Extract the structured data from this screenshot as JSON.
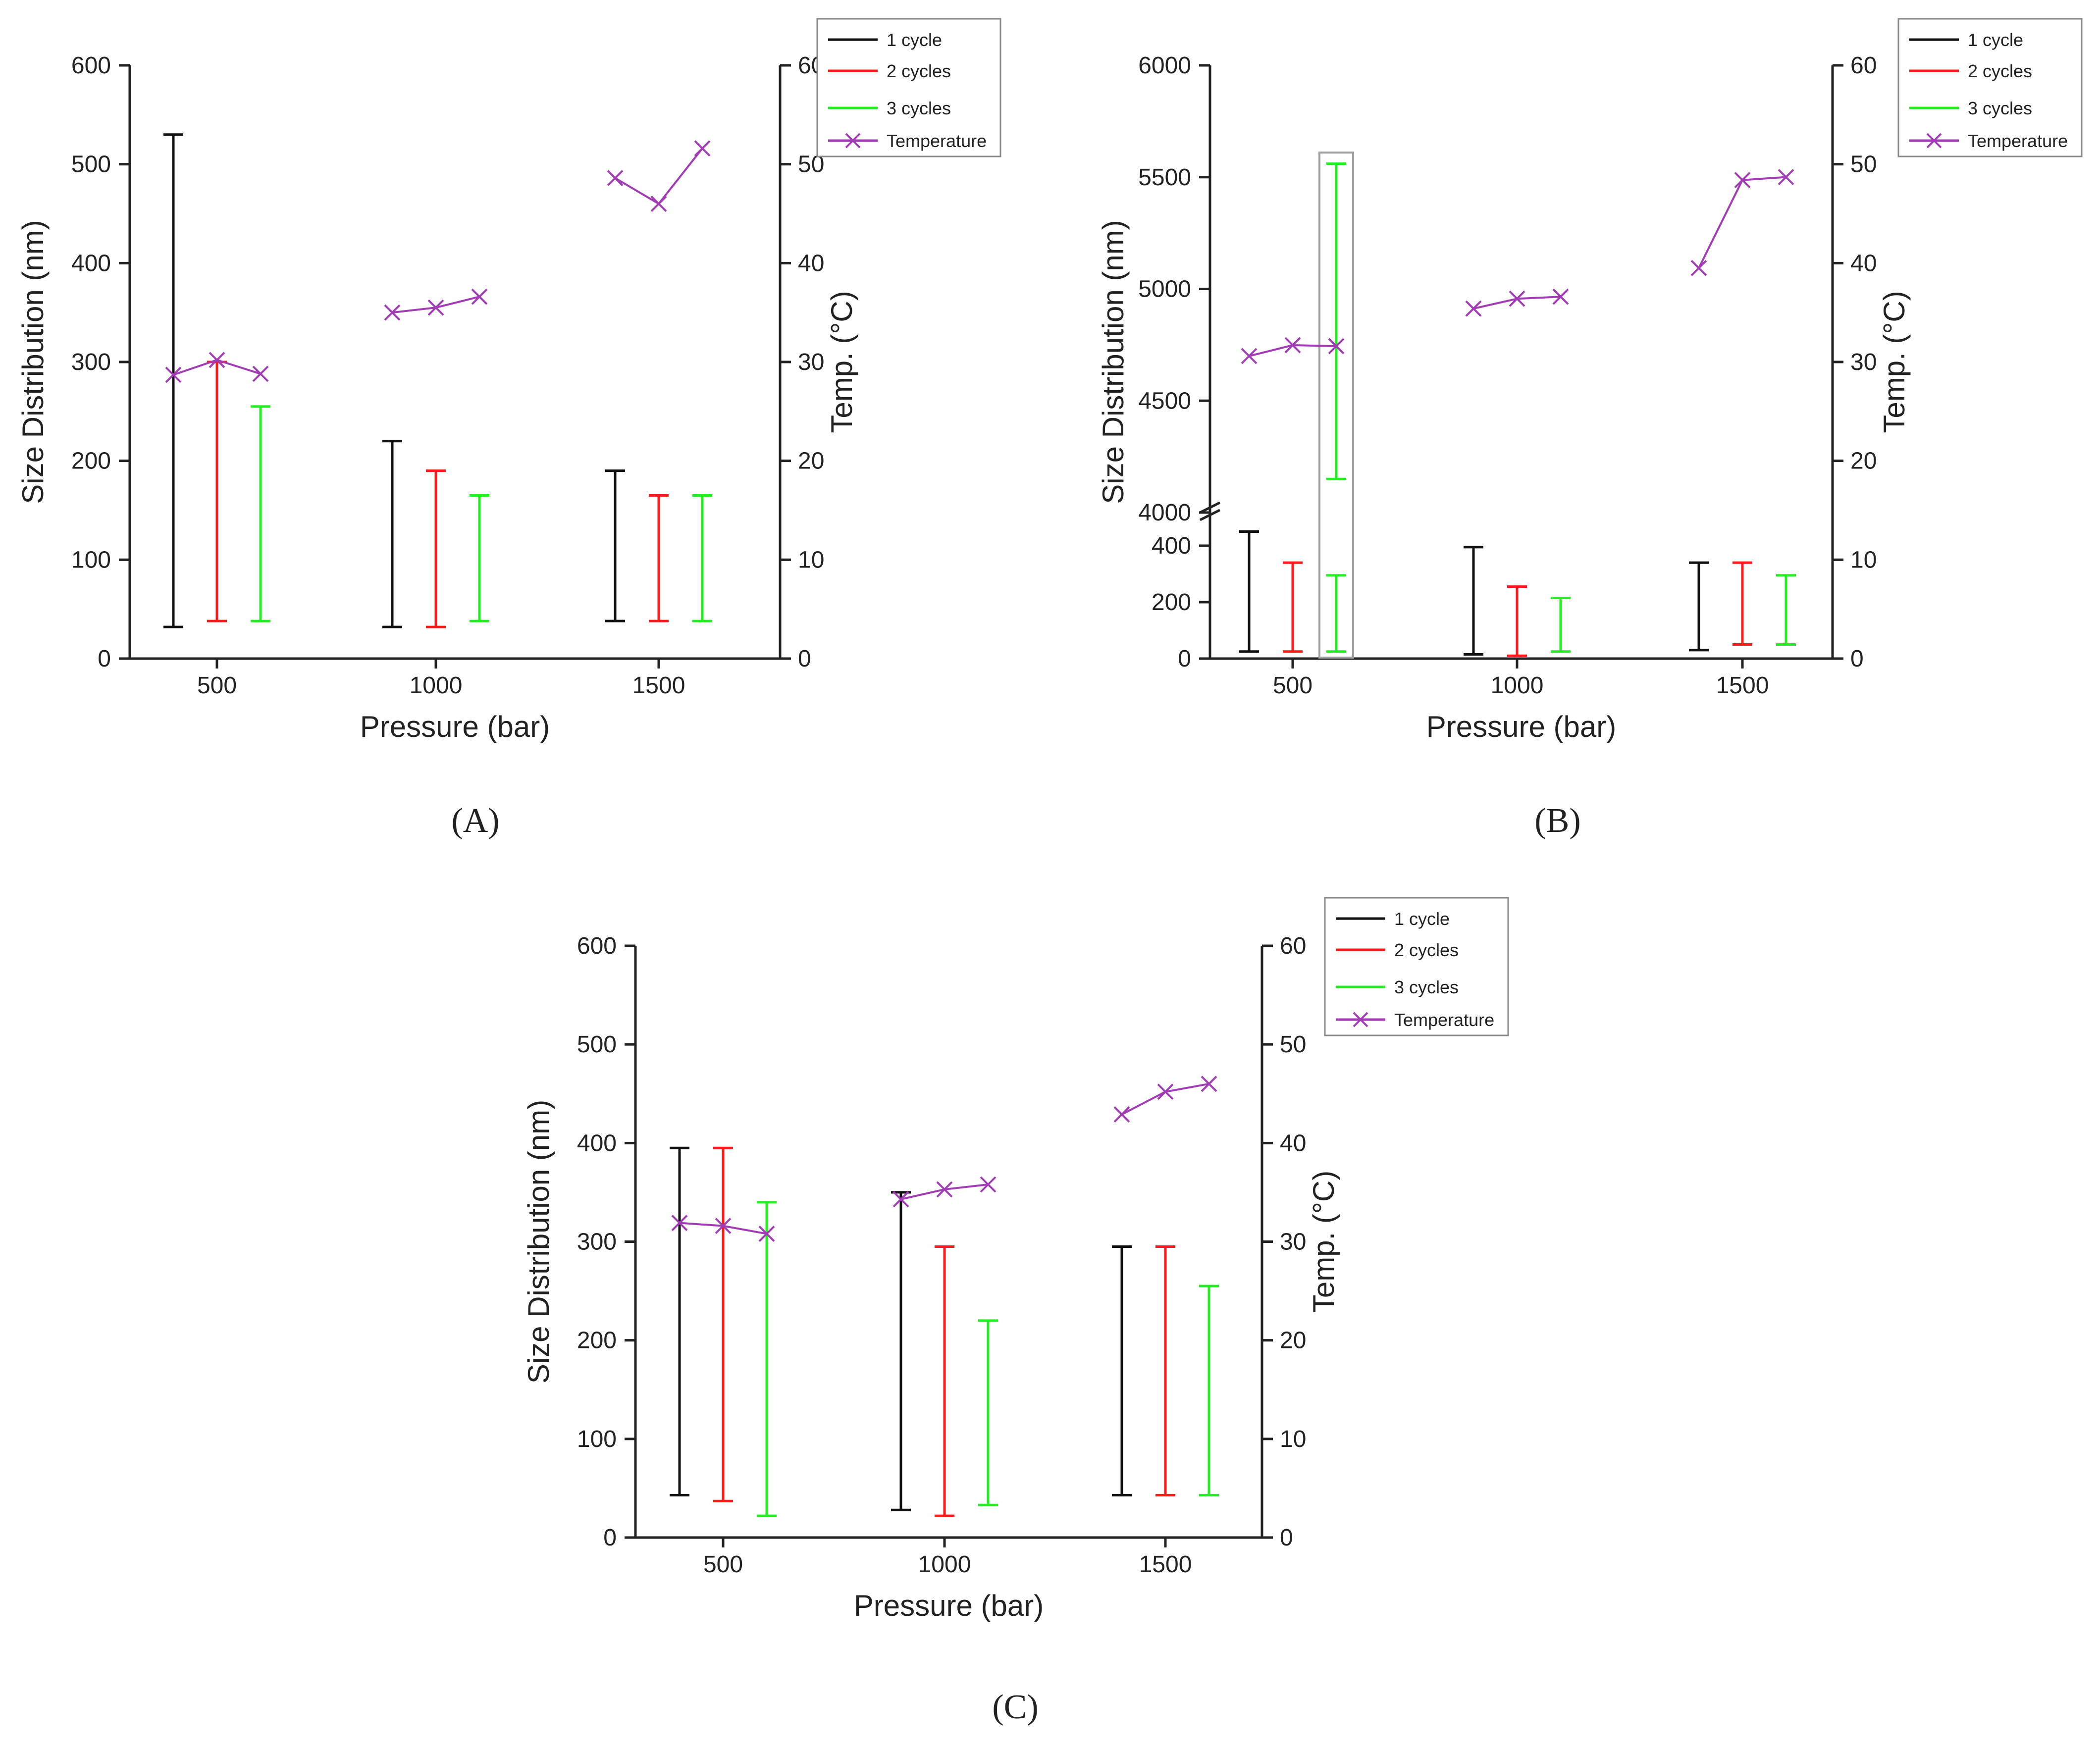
{
  "colors": {
    "cycle1": "#111111",
    "cycle2": "#ff1a1a",
    "cycle3": "#22ee22",
    "temperature": "#a23cb4",
    "highlight": "#a0a0a0"
  },
  "legend": [
    "1 cycle",
    "2 cycles",
    "3 cycles",
    "Temperature"
  ],
  "chart_data": [
    {
      "type": "range_bar_with_line",
      "panel": "(A)",
      "xlabel": "Pressure (bar)",
      "ylabel": "Size Distribution (nm)",
      "y2label": "Temp. (°C)",
      "categories": [
        "500",
        "1000",
        "1500"
      ],
      "ylim": [
        0,
        600
      ],
      "yticks": [
        "0",
        "100",
        "200",
        "300",
        "400",
        "500",
        "600"
      ],
      "y2lim": [
        0,
        60
      ],
      "y2ticks": [
        "0",
        "10",
        "20",
        "30",
        "40",
        "50",
        "60"
      ],
      "series": [
        {
          "name": "1 cycle",
          "ranges": [
            [
              32,
              530
            ],
            [
              32,
              220
            ],
            [
              38,
              190
            ]
          ]
        },
        {
          "name": "2 cycles",
          "ranges": [
            [
              38,
              300
            ],
            [
              32,
              190
            ],
            [
              38,
              165
            ]
          ]
        },
        {
          "name": "3 cycles",
          "ranges": [
            [
              38,
              255
            ],
            [
              38,
              165
            ],
            [
              38,
              165
            ]
          ]
        }
      ],
      "temperature": [
        [
          28.7,
          30.2,
          28.8
        ],
        [
          35.0,
          35.5,
          36.6
        ],
        [
          48.6,
          46.0,
          51.6
        ]
      ]
    },
    {
      "type": "range_bar_with_line",
      "panel": "(B)",
      "xlabel": "Pressure (bar)",
      "ylabel": "Size Distribution (nm)",
      "y2label": "Temp. (°C)",
      "categories": [
        "500",
        "1000",
        "1500"
      ],
      "axis_break": {
        "lower_range": [
          0,
          500
        ],
        "upper_range": [
          4000,
          6000
        ]
      },
      "yticks_lower": [
        "0",
        "200",
        "400"
      ],
      "yticks_upper": [
        "4000",
        "4500",
        "5000",
        "5500",
        "6000"
      ],
      "y2lim": [
        0,
        60
      ],
      "y2ticks": [
        "0",
        "10",
        "20",
        "30",
        "40",
        "50",
        "60"
      ],
      "series": [
        {
          "name": "1 cycle",
          "ranges": [
            [
              25,
              450
            ],
            [
              15,
              395
            ],
            [
              30,
              340
            ]
          ]
        },
        {
          "name": "2 cycles",
          "ranges": [
            [
              25,
              340
            ],
            [
              10,
              255
            ],
            [
              50,
              340
            ]
          ]
        },
        {
          "name": "3 cycles",
          "ranges": [
            [
              25,
              295
            ],
            [
              25,
              215
            ],
            [
              50,
              295
            ]
          ]
        }
      ],
      "highlight_extra": {
        "category": "500",
        "series": "3 cycles",
        "range": [
          4150,
          5560
        ]
      },
      "temperature": [
        [
          30.6,
          31.7,
          31.6
        ],
        [
          35.4,
          36.4,
          36.6
        ],
        [
          39.5,
          48.4,
          48.7
        ]
      ]
    },
    {
      "type": "range_bar_with_line",
      "panel": "(C)",
      "xlabel": "Pressure (bar)",
      "ylabel": "Size Distribution (nm)",
      "y2label": "Temp. (°C)",
      "categories": [
        "500",
        "1000",
        "1500"
      ],
      "ylim": [
        0,
        600
      ],
      "yticks": [
        "0",
        "100",
        "200",
        "300",
        "400",
        "500",
        "600"
      ],
      "y2lim": [
        0,
        60
      ],
      "y2ticks": [
        "0",
        "10",
        "20",
        "30",
        "40",
        "50",
        "60"
      ],
      "series": [
        {
          "name": "1 cycle",
          "ranges": [
            [
              43,
              395
            ],
            [
              28,
              350
            ],
            [
              43,
              295
            ]
          ]
        },
        {
          "name": "2 cycles",
          "ranges": [
            [
              37,
              395
            ],
            [
              22,
              295
            ],
            [
              43,
              295
            ]
          ]
        },
        {
          "name": "3 cycles",
          "ranges": [
            [
              22,
              340
            ],
            [
              33,
              220
            ],
            [
              43,
              255
            ]
          ]
        }
      ],
      "temperature": [
        [
          31.9,
          31.6,
          30.8
        ],
        [
          34.3,
          35.3,
          35.8
        ],
        [
          42.9,
          45.2,
          46.0
        ]
      ]
    }
  ]
}
